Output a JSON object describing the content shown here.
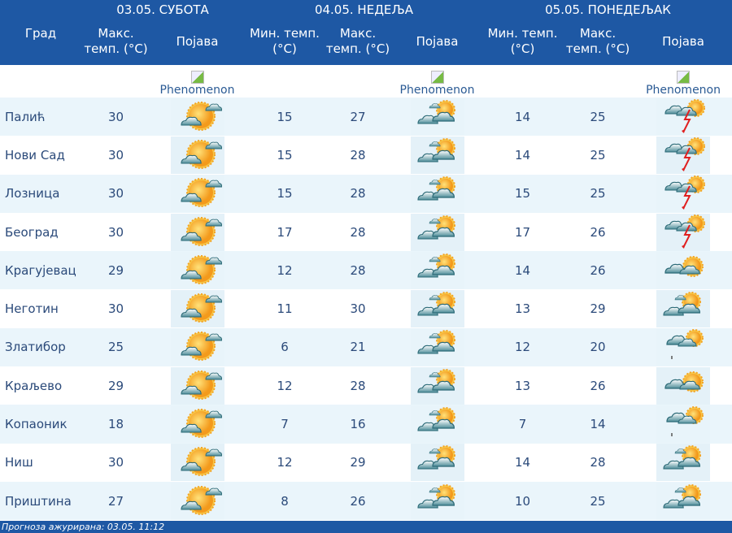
{
  "header": {
    "city": "Град",
    "days": [
      "03.05. СУБОТА",
      "04.05. НЕДЕЉА",
      "05.05. ПОНЕДЕЉАК"
    ],
    "max": "Макс. темп. (°C)",
    "min": "Мин. темп. (°C)",
    "phenomenon": "Појава",
    "img_alt": "Phenomenon"
  },
  "rows": [
    {
      "city": "Палић",
      "d1max": "30",
      "d1icon": "sun-cloud",
      "d2min": "15",
      "d2max": "27",
      "d2icon": "partly-cloudy",
      "d3min": "14",
      "d3max": "25",
      "d3icon": "thunderstorm"
    },
    {
      "city": "Нови Сад",
      "d1max": "30",
      "d1icon": "sun-cloud",
      "d2min": "15",
      "d2max": "28",
      "d2icon": "partly-cloudy",
      "d3min": "14",
      "d3max": "25",
      "d3icon": "thunderstorm"
    },
    {
      "city": "Лозница",
      "d1max": "30",
      "d1icon": "sun-cloud",
      "d2min": "15",
      "d2max": "28",
      "d2icon": "partly-cloudy",
      "d3min": "15",
      "d3max": "25",
      "d3icon": "thunderstorm"
    },
    {
      "city": "Београд",
      "d1max": "30",
      "d1icon": "sun-cloud",
      "d2min": "17",
      "d2max": "28",
      "d2icon": "partly-cloudy",
      "d3min": "17",
      "d3max": "26",
      "d3icon": "thunderstorm"
    },
    {
      "city": "Крагујевац",
      "d1max": "29",
      "d1icon": "sun-cloud",
      "d2min": "12",
      "d2max": "28",
      "d2icon": "partly-cloudy",
      "d3min": "14",
      "d3max": "26",
      "d3icon": "cloudy-sun"
    },
    {
      "city": "Неготин",
      "d1max": "30",
      "d1icon": "sun-cloud",
      "d2min": "11",
      "d2max": "30",
      "d2icon": "partly-cloudy",
      "d3min": "13",
      "d3max": "29",
      "d3icon": "partly-cloudy"
    },
    {
      "city": "Златибор",
      "d1max": "25",
      "d1icon": "sun-cloud",
      "d2min": "6",
      "d2max": "21",
      "d2icon": "partly-cloudy",
      "d3min": "12",
      "d3max": "20",
      "d3icon": "cloudy-rain"
    },
    {
      "city": "Краљево",
      "d1max": "29",
      "d1icon": "sun-cloud",
      "d2min": "12",
      "d2max": "28",
      "d2icon": "partly-cloudy",
      "d3min": "13",
      "d3max": "26",
      "d3icon": "cloudy-sun"
    },
    {
      "city": "Копаоник",
      "d1max": "18",
      "d1icon": "sun-cloud",
      "d2min": "7",
      "d2max": "16",
      "d2icon": "partly-cloudy",
      "d3min": "7",
      "d3max": "14",
      "d3icon": "cloudy-rain"
    },
    {
      "city": "Ниш",
      "d1max": "30",
      "d1icon": "sun-cloud",
      "d2min": "12",
      "d2max": "29",
      "d2icon": "partly-cloudy",
      "d3min": "14",
      "d3max": "28",
      "d3icon": "partly-cloudy"
    },
    {
      "city": "Приштина",
      "d1max": "27",
      "d1icon": "sun-cloud",
      "d2min": "8",
      "d2max": "26",
      "d2icon": "partly-cloudy",
      "d3min": "10",
      "d3max": "25",
      "d3icon": "partly-cloudy"
    }
  ],
  "footer": "Прогноза ажурирана:  03.05. 11:12",
  "colors": {
    "header": "#1e58a4",
    "row_alt": "#eaf5fb",
    "text": "#2b4a7a"
  }
}
